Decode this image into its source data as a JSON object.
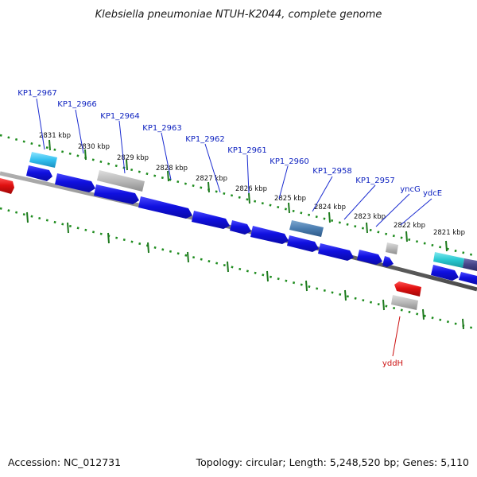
{
  "title": "Klebsiella pneumoniae NTUH-K2044, complete genome",
  "footer": {
    "accession": "Accession: NC_012731",
    "topology": "Topology: circular; Length: 5,248,520 bp; Genes: 5,110"
  },
  "colors": {
    "background": "#ffffff",
    "backbone": "#7a7a7a",
    "tick_major": "#1e7a1e",
    "tick_minor": "#1e8c1e",
    "gene_blue": "#1010e0",
    "gene_red": "#e01010",
    "gene_gray": "#b8b8b8",
    "gene_lightblue": "#33c0f0",
    "gene_steelblue": "#4a7db0",
    "gene_cyan": "#28c8d0",
    "gene_darkslate": "#444488",
    "label_blue": "#0b1fbf",
    "label_red": "#cc1111"
  },
  "kbp_labels": [
    "2831 kbp",
    "2830 kbp",
    "2829 kbp",
    "2828 kbp",
    "2827 kbp",
    "2826 kbp",
    "2825 kbp",
    "2824 kbp",
    "2823 kbp",
    "2822 kbp",
    "2821 kbp"
  ],
  "gene_labels": {
    "kp1_2967": "KP1_2967",
    "kp1_2966": "KP1_2966",
    "kp1_2964": "KP1_2964",
    "kp1_2963": "KP1_2963",
    "kp1_2962": "KP1_2962",
    "kp1_2961": "KP1_2961",
    "kp1_2960": "KP1_2960",
    "kp1_2958": "KP1_2958",
    "kp1_2957": "KP1_2957",
    "yncg": "yncG",
    "ydce": "ydcE",
    "yddh": "yddH"
  }
}
